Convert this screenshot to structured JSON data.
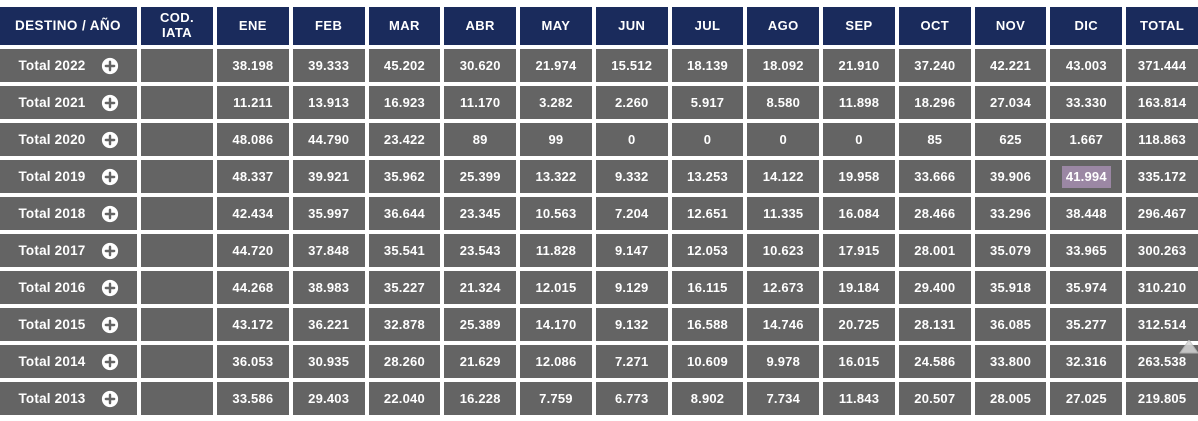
{
  "colors": {
    "header_bg": "#1a2b5c",
    "row_bg": "#646464",
    "selection_bg": "#9b87a4",
    "cell_text": "#ffffff",
    "page_bg": "#ffffff"
  },
  "table": {
    "columns": [
      "DESTINO / AÑO",
      "COD. IATA",
      "ENE",
      "FEB",
      "MAR",
      "ABR",
      "MAY",
      "JUN",
      "JUL",
      "AGO",
      "SEP",
      "OCT",
      "NOV",
      "DIC",
      "TOTAL"
    ],
    "expand_icon": "plus-circle",
    "selection": {
      "row_index": 3,
      "value_index": 11,
      "value": "41.994"
    },
    "rows": [
      {
        "label": "Total 2022",
        "iata": "",
        "values": [
          "38.198",
          "39.333",
          "45.202",
          "30.620",
          "21.974",
          "15.512",
          "18.139",
          "18.092",
          "21.910",
          "37.240",
          "42.221",
          "43.003",
          "371.444"
        ]
      },
      {
        "label": "Total 2021",
        "iata": "",
        "values": [
          "11.211",
          "13.913",
          "16.923",
          "11.170",
          "3.282",
          "2.260",
          "5.917",
          "8.580",
          "11.898",
          "18.296",
          "27.034",
          "33.330",
          "163.814"
        ]
      },
      {
        "label": "Total 2020",
        "iata": "",
        "values": [
          "48.086",
          "44.790",
          "23.422",
          "89",
          "99",
          "0",
          "0",
          "0",
          "0",
          "85",
          "625",
          "1.667",
          "118.863"
        ]
      },
      {
        "label": "Total 2019",
        "iata": "",
        "values": [
          "48.337",
          "39.921",
          "35.962",
          "25.399",
          "13.322",
          "9.332",
          "13.253",
          "14.122",
          "19.958",
          "33.666",
          "39.906",
          "41.994",
          "335.172"
        ]
      },
      {
        "label": "Total 2018",
        "iata": "",
        "values": [
          "42.434",
          "35.997",
          "36.644",
          "23.345",
          "10.563",
          "7.204",
          "12.651",
          "11.335",
          "16.084",
          "28.466",
          "33.296",
          "38.448",
          "296.467"
        ]
      },
      {
        "label": "Total 2017",
        "iata": "",
        "values": [
          "44.720",
          "37.848",
          "35.541",
          "23.543",
          "11.828",
          "9.147",
          "12.053",
          "10.623",
          "17.915",
          "28.001",
          "35.079",
          "33.965",
          "300.263"
        ]
      },
      {
        "label": "Total 2016",
        "iata": "",
        "values": [
          "44.268",
          "38.983",
          "35.227",
          "21.324",
          "12.015",
          "9.129",
          "16.115",
          "12.673",
          "19.184",
          "29.400",
          "35.918",
          "35.974",
          "310.210"
        ]
      },
      {
        "label": "Total 2015",
        "iata": "",
        "values": [
          "43.172",
          "36.221",
          "32.878",
          "25.389",
          "14.170",
          "9.132",
          "16.588",
          "14.746",
          "20.725",
          "28.131",
          "36.085",
          "35.277",
          "312.514"
        ]
      },
      {
        "label": "Total 2014",
        "iata": "",
        "values": [
          "36.053",
          "30.935",
          "28.260",
          "21.629",
          "12.086",
          "7.271",
          "10.609",
          "9.978",
          "16.015",
          "24.586",
          "33.800",
          "32.316",
          "263.538"
        ]
      },
      {
        "label": "Total 2013",
        "iata": "",
        "values": [
          "33.586",
          "29.403",
          "22.040",
          "16.228",
          "7.759",
          "6.773",
          "8.902",
          "7.734",
          "11.843",
          "20.507",
          "28.005",
          "27.025",
          "219.805"
        ]
      }
    ]
  }
}
